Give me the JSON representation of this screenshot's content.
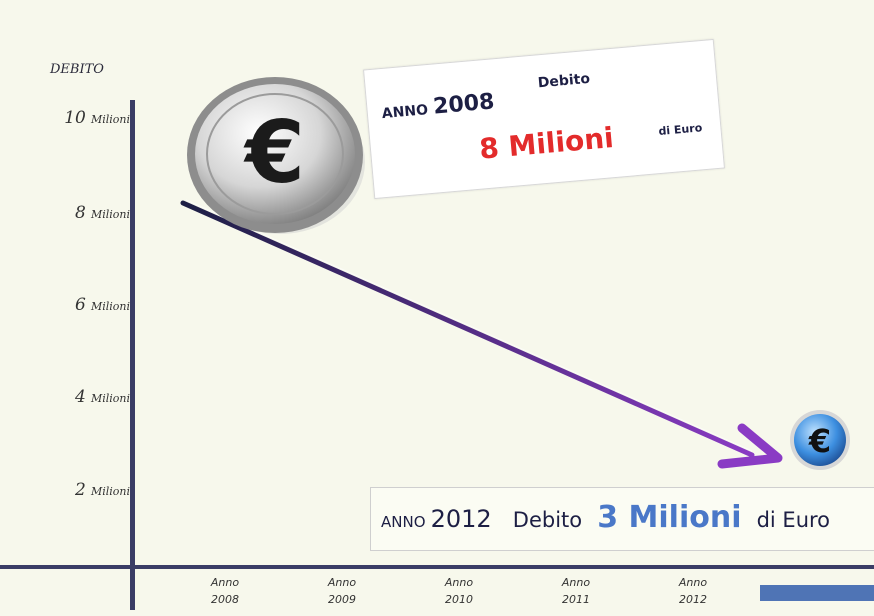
{
  "chart_data": {
    "type": "line",
    "ylabel": "DEBITO",
    "y_ticks": [
      {
        "value": 10,
        "label_num": "10",
        "label_unit": "Milioni"
      },
      {
        "value": 8,
        "label_num": "8",
        "label_unit": "Milioni"
      },
      {
        "value": 6,
        "label_num": "6",
        "label_unit": "Milioni"
      },
      {
        "value": 4,
        "label_num": "4",
        "label_unit": "Milioni"
      },
      {
        "value": 2,
        "label_num": "2",
        "label_unit": "Milioni"
      }
    ],
    "x_ticks": [
      {
        "top": "Anno",
        "bottom": "2008"
      },
      {
        "top": "Anno",
        "bottom": "2009"
      },
      {
        "top": "Anno",
        "bottom": "2010"
      },
      {
        "top": "Anno",
        "bottom": "2011"
      },
      {
        "top": "Anno",
        "bottom": "2012"
      }
    ],
    "series": [
      {
        "x": [
          "2008",
          "2012"
        ],
        "values": [
          8,
          3
        ]
      }
    ],
    "ylim": [
      0,
      10
    ]
  },
  "callout_2008": {
    "anno": "ANNO",
    "year": "2008",
    "debito": "Debito",
    "amount": "8 Milioni",
    "unit": "di Euro"
  },
  "callout_2012": {
    "anno": "ANNO",
    "year": "2012",
    "debito": "Debito",
    "amount": "3 Milioni",
    "unit": "di Euro"
  },
  "coin_symbol": "€",
  "colors": {
    "axis": "#3a3d66",
    "arrow_start": "#1d1f44",
    "arrow_end": "#8a3bc4",
    "amount_2008": "#e32b2b",
    "amount_2012": "#4a78c8",
    "coin_small": "#3d8fe0"
  }
}
